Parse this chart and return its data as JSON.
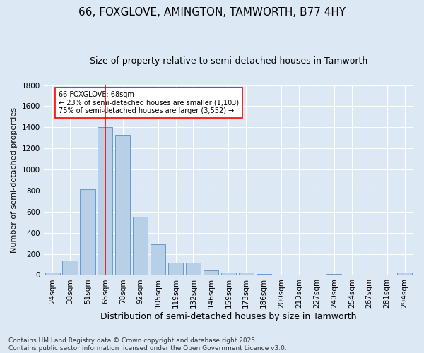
{
  "title": "66, FOXGLOVE, AMINGTON, TAMWORTH, B77 4HY",
  "subtitle": "Size of property relative to semi-detached houses in Tamworth",
  "xlabel": "Distribution of semi-detached houses by size in Tamworth",
  "ylabel": "Number of semi-detached properties",
  "categories": [
    "24sqm",
    "38sqm",
    "51sqm",
    "65sqm",
    "78sqm",
    "92sqm",
    "105sqm",
    "119sqm",
    "132sqm",
    "146sqm",
    "159sqm",
    "173sqm",
    "186sqm",
    "200sqm",
    "213sqm",
    "227sqm",
    "240sqm",
    "254sqm",
    "267sqm",
    "281sqm",
    "294sqm"
  ],
  "values": [
    20,
    140,
    810,
    1400,
    1330,
    550,
    290,
    120,
    120,
    45,
    25,
    25,
    10,
    0,
    0,
    0,
    10,
    0,
    0,
    0,
    20
  ],
  "bar_color": "#b8cfe8",
  "bar_edgecolor": "#6699cc",
  "vline_x_index": 3,
  "vline_color": "red",
  "annotation_title": "66 FOXGLOVE: 68sqm",
  "annotation_line1": "← 23% of semi-detached houses are smaller (1,103)",
  "annotation_line2": "75% of semi-detached houses are larger (3,552) →",
  "annotation_box_color": "#ffffff",
  "annotation_box_edgecolor": "red",
  "ylim": [
    0,
    1800
  ],
  "yticks": [
    0,
    200,
    400,
    600,
    800,
    1000,
    1200,
    1400,
    1600,
    1800
  ],
  "background_color": "#dde8f5",
  "grid_color": "#ffffff",
  "footer": "Contains HM Land Registry data © Crown copyright and database right 2025.\nContains public sector information licensed under the Open Government Licence v3.0.",
  "title_fontsize": 11,
  "subtitle_fontsize": 9,
  "xlabel_fontsize": 9,
  "ylabel_fontsize": 8,
  "tick_fontsize": 7.5,
  "footer_fontsize": 6.5
}
